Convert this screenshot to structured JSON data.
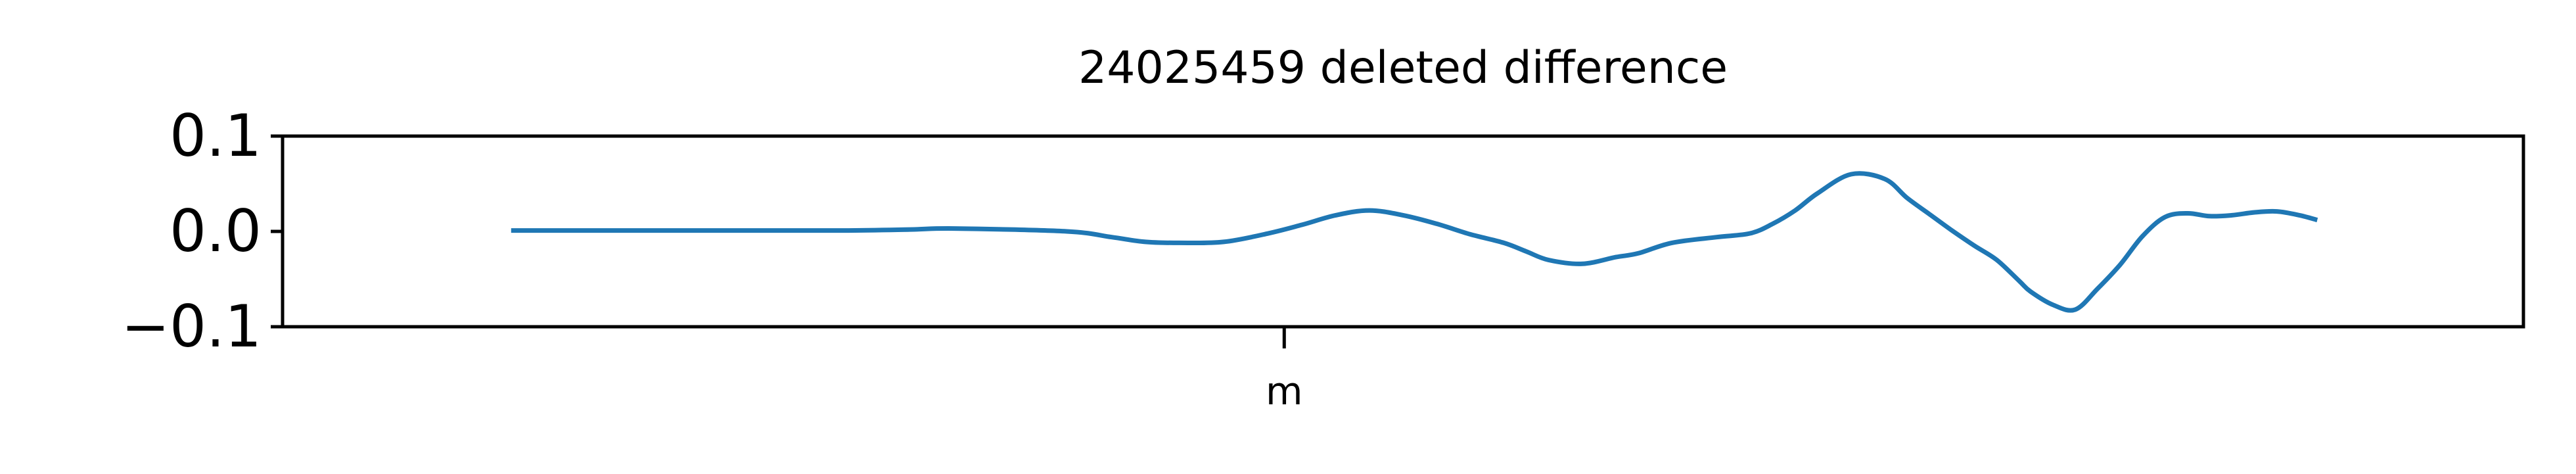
{
  "chart_data": {
    "type": "line",
    "title": "24025459 deleted difference",
    "xlabel": "",
    "ylabel": "",
    "xlim": [
      0,
      100
    ],
    "ylim": [
      -0.1,
      0.1
    ],
    "yticks": [
      0.1,
      0.0,
      -0.1
    ],
    "ytick_labels": [
      "0.1",
      "0.0",
      "−0.1"
    ],
    "xticks": [
      44.7
    ],
    "xtick_labels": [
      "m"
    ],
    "grid": false,
    "legend": "none",
    "colors": {
      "line": "#1f77b4",
      "axes": "#000000"
    },
    "series": [
      {
        "x": [
          10.2,
          15.0,
          20.0,
          25.0,
          28.0,
          30.0,
          35.0,
          37.0,
          38.5,
          40.0,
          42.0,
          44.0,
          45.5,
          47.0,
          48.5,
          50.0,
          51.5,
          53.0,
          54.5,
          55.5,
          56.5,
          58.0,
          59.5,
          60.5,
          62.0,
          64.0,
          65.5,
          66.5,
          67.5,
          68.5,
          70.0,
          71.5,
          72.5,
          73.5,
          74.5,
          75.5,
          76.5,
          77.5,
          78.0,
          79.0,
          80.0,
          81.0,
          82.0,
          83.0,
          84.0,
          85.0,
          86.0,
          87.0,
          88.0,
          89.0,
          90.0,
          90.8
        ],
        "y": [
          0.001,
          0.001,
          0.001,
          0.001,
          0.002,
          0.003,
          0.0,
          -0.006,
          -0.011,
          -0.012,
          -0.011,
          -0.002,
          0.007,
          0.017,
          0.022,
          0.017,
          0.008,
          -0.003,
          -0.012,
          -0.021,
          -0.03,
          -0.034,
          -0.027,
          -0.023,
          -0.012,
          -0.006,
          -0.002,
          0.008,
          0.022,
          0.04,
          0.06,
          0.055,
          0.035,
          0.018,
          0.001,
          -0.015,
          -0.03,
          -0.052,
          -0.063,
          -0.077,
          -0.082,
          -0.06,
          -0.035,
          -0.005,
          0.015,
          0.019,
          0.016,
          0.017,
          0.02,
          0.021,
          0.017,
          0.012
        ]
      }
    ]
  }
}
